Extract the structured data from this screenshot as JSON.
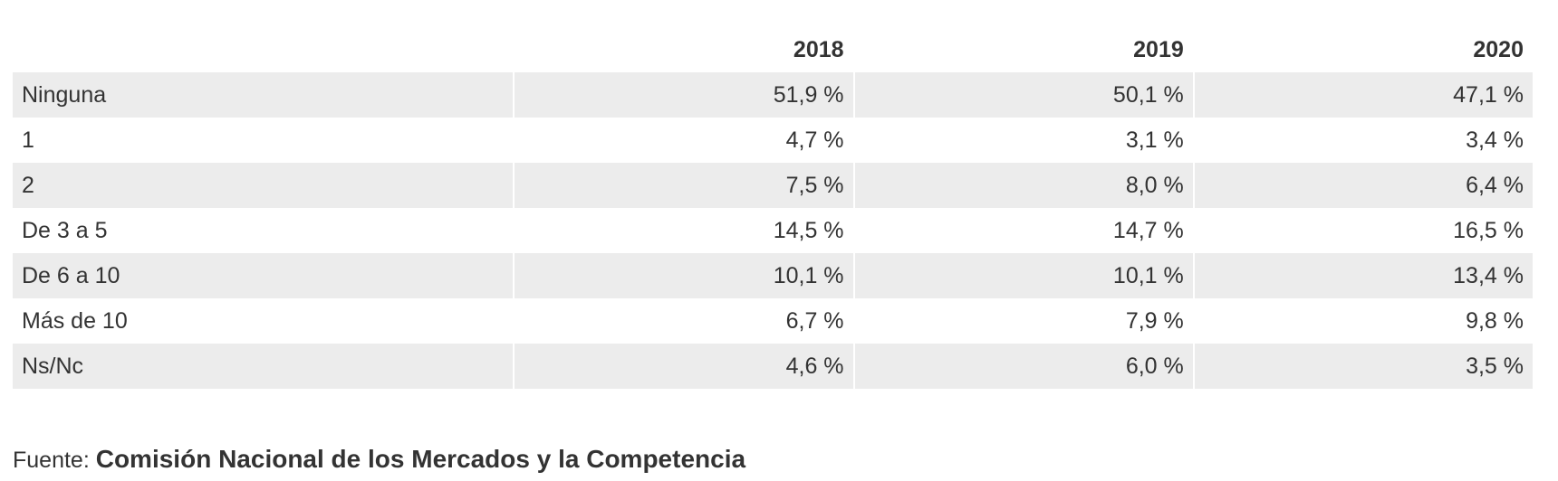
{
  "chart_data": {
    "type": "table",
    "columns": [
      "",
      "2018",
      "2019",
      "2020"
    ],
    "rows": [
      {
        "label": "Ninguna",
        "values": [
          "51,9 %",
          "50,1 %",
          "47,1 %"
        ]
      },
      {
        "label": "1",
        "values": [
          "4,7 %",
          "3,1 %",
          "3,4 %"
        ]
      },
      {
        "label": "2",
        "values": [
          "7,5 %",
          "8,0 %",
          "6,4 %"
        ]
      },
      {
        "label": "De 3 a 5",
        "values": [
          "14,5 %",
          "14,7 %",
          "16,5 %"
        ]
      },
      {
        "label": "De 6 a 10",
        "values": [
          "10,1 %",
          "10,1 %",
          "13,4 %"
        ]
      },
      {
        "label": "Más de 10",
        "values": [
          "6,7 %",
          "7,9 %",
          "9,8 %"
        ]
      },
      {
        "label": "Ns/Nc",
        "values": [
          "4,6 %",
          "6,0 %",
          "3,5 %"
        ]
      }
    ]
  },
  "source": {
    "prefix": "Fuente:",
    "name": "Comisión Nacional de los Mercados y la Competencia"
  },
  "colors": {
    "row_shade": "#ececec",
    "text": "#333333"
  }
}
